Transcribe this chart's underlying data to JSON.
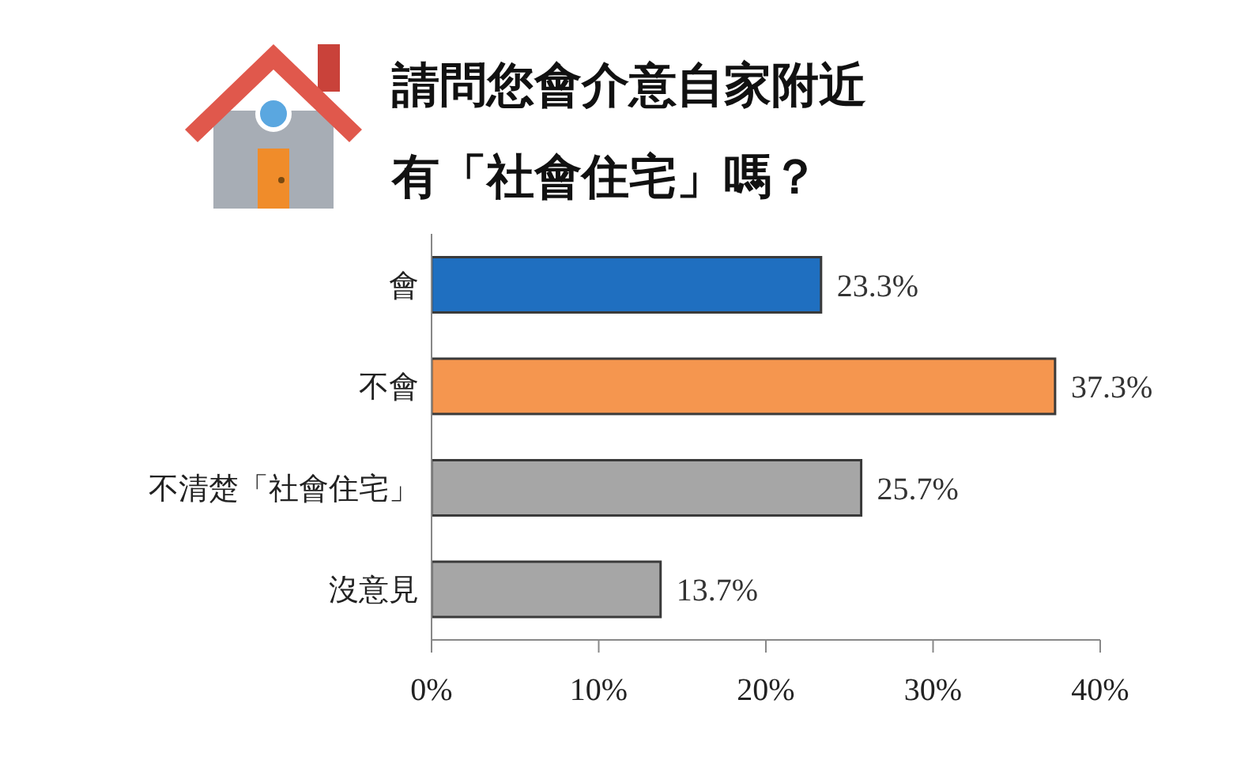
{
  "chart_data": {
    "type": "bar",
    "orientation": "horizontal",
    "title": "請問您會介意自家附近有「社會住宅」嗎？",
    "categories": [
      "會",
      "不會",
      "不清楚「社會住宅」",
      "沒意見"
    ],
    "values": [
      23.3,
      37.3,
      25.7,
      13.7
    ],
    "colors": [
      "#1f6fc0",
      "#f5964f",
      "#a6a6a6",
      "#a6a6a6"
    ],
    "value_labels": [
      "23.3%",
      "37.3%",
      "25.7%",
      "13.7%"
    ],
    "xlim": [
      0,
      40
    ],
    "xticks": [
      {
        "value": 0,
        "label": "0%"
      },
      {
        "value": 10,
        "label": "10%"
      },
      {
        "value": 20,
        "label": "20%"
      },
      {
        "value": 30,
        "label": "30%"
      },
      {
        "value": 40,
        "label": "40%"
      }
    ],
    "grid": false,
    "legend": false
  }
}
